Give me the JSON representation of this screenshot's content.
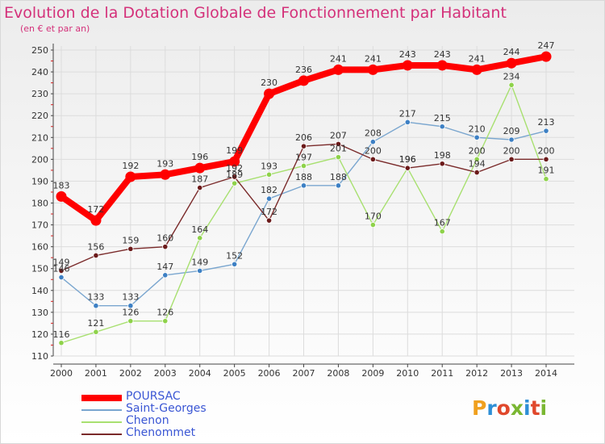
{
  "title": "Evolution de la Dotation Globale de Fonctionnement par Habitant",
  "subtitle": "(en € et par an)",
  "logo": {
    "text": "Proxiti",
    "colors": [
      "#f0a01e",
      "#2e8fd6",
      "#e0482c",
      "#7ab732",
      "#2e8fd6",
      "#e0482c",
      "#7ab732"
    ]
  },
  "chart_data": {
    "type": "line",
    "x": [
      "2000",
      "2001",
      "2002",
      "2003",
      "2004",
      "2005",
      "2006",
      "2007",
      "2008",
      "2009",
      "2010",
      "2011",
      "2012",
      "2013",
      "2014"
    ],
    "ylim": [
      110,
      250
    ],
    "yticks": [
      110,
      120,
      130,
      140,
      150,
      160,
      170,
      180,
      190,
      200,
      210,
      220,
      230,
      240,
      250
    ],
    "grid": true,
    "legend_position": "bottom-left",
    "series": [
      {
        "name": "POURSAC",
        "color": "#ff0000",
        "values": [
          183,
          172,
          192,
          193,
          196,
          199,
          230,
          236,
          241,
          241,
          243,
          243,
          241,
          244,
          247
        ]
      },
      {
        "name": "Saint-Georges",
        "color": "#7aa6cf",
        "marker": "#3d80c4",
        "values": [
          146,
          133,
          133,
          147,
          149,
          152,
          182,
          188,
          188,
          208,
          217,
          215,
          210,
          209,
          213
        ]
      },
      {
        "name": "Chenon",
        "color": "#a8e070",
        "marker": "#8ed24a",
        "values": [
          116,
          121,
          126,
          126,
          164,
          189,
          193,
          197,
          201,
          170,
          196,
          167,
          200,
          234,
          191
        ]
      },
      {
        "name": "Chenommet",
        "color": "#7a2a2a",
        "marker": "#6b1a1a",
        "values": [
          149,
          156,
          159,
          160,
          187,
          192,
          172,
          206,
          207,
          200,
          196,
          198,
          194,
          200,
          200
        ]
      }
    ]
  }
}
